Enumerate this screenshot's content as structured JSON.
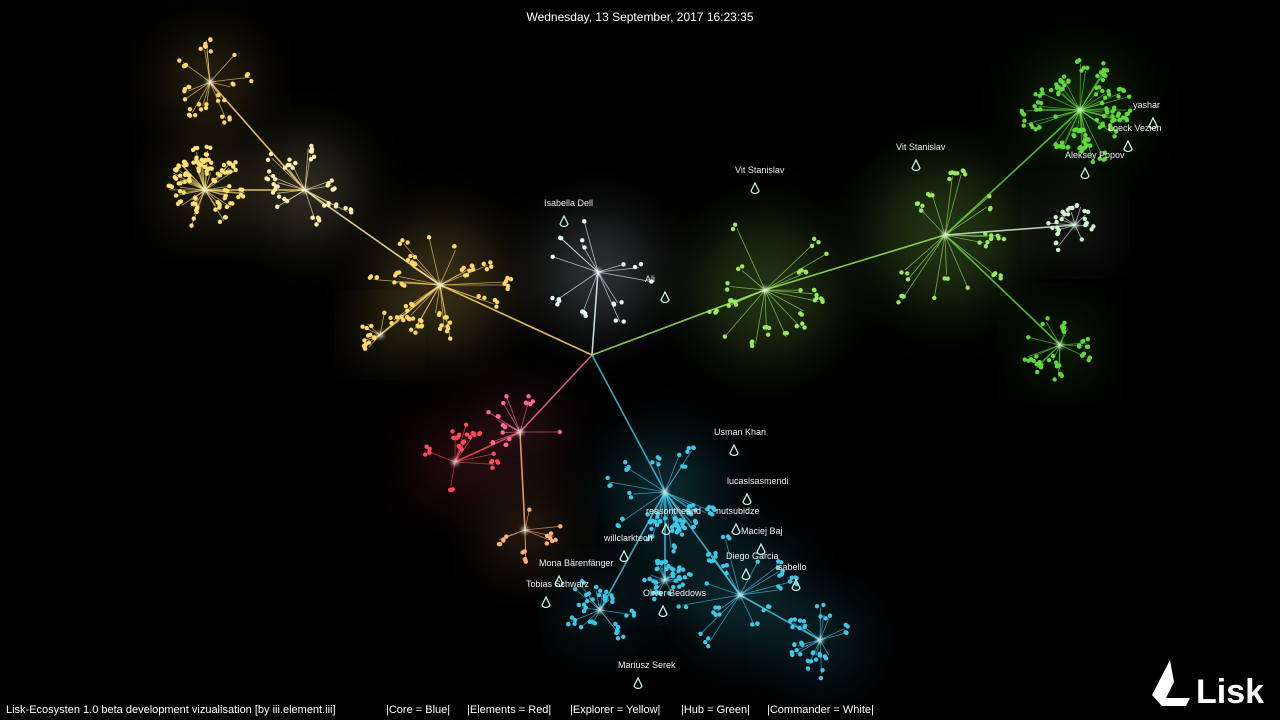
{
  "header": {
    "timestamp": "Wednesday, 13 September, 2017 16:23:35"
  },
  "users": [
    {
      "label": "Isabella Dell"
    },
    {
      "label": "Ali"
    },
    {
      "label": "Vit Stanislav"
    },
    {
      "label": "Vit Stanislav"
    },
    {
      "label": "yashar"
    },
    {
      "label": "Loeck Vezien"
    },
    {
      "label": "Aleksey Popov"
    },
    {
      "label": "Usman Khan"
    },
    {
      "label": "lucasisasmendi"
    },
    {
      "label": "reasontheand"
    },
    {
      "label": "nutsubidze"
    },
    {
      "label": "willclarktech"
    },
    {
      "label": "Maciej Baj"
    },
    {
      "label": "Diego Garcia"
    },
    {
      "label": "isabello"
    },
    {
      "label": "Mona Bärenfänger"
    },
    {
      "label": "Tobias Schwarz"
    },
    {
      "label": "Oliver Beddows"
    },
    {
      "label": "Mariusz Serek"
    }
  ],
  "footer": {
    "credit": "Lisk-Ecosysten 1.0 beta development vizualisation  [by iii.element.iii]",
    "legend": [
      "|Core = Blue|",
      "|Elements = Red|",
      "|Explorer = Yellow|",
      "|Hub = Green|",
      "|Commander = White|"
    ]
  },
  "logo": "Lisk"
}
